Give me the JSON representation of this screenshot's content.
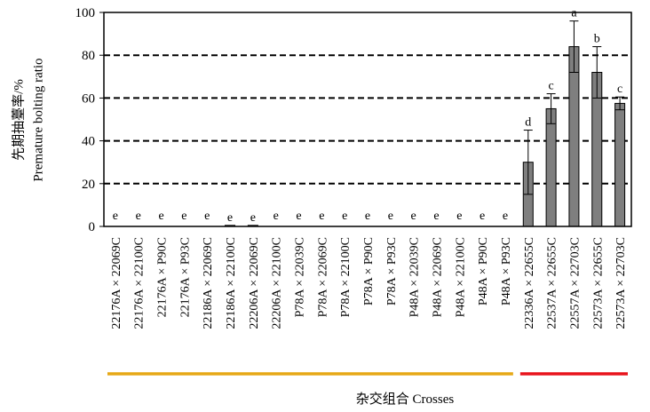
{
  "chart_data": {
    "type": "bar",
    "title": "",
    "ylabel_cn": "先期抽薹率/%",
    "ylabel_en": "Premature bolting ratio",
    "xlabel": "杂交组合 Crosses",
    "ylim": [
      0,
      100
    ],
    "yticks": [
      0,
      20,
      40,
      60,
      80,
      100
    ],
    "grid": "dashed horizontal",
    "categories": [
      "22176A × 22069C",
      "22176A × 22100C",
      "22176A × P90C",
      "22176A × P93C",
      "22186A × 22069C",
      "22186A × 22100C",
      "22206A × 22069C",
      "22206A × 22100C",
      "P78A × 22039C",
      "P78A × 22069C",
      "P78A × 22100C",
      "P78A × P90C",
      "P78A × P93C",
      "P48A × 22039C",
      "P48A × 22069C",
      "P48A × 22100C",
      "P48A × P90C",
      "P48A × P93C",
      "22336A × 22655C",
      "22537A × 22655C",
      "22557A × 22703C",
      "22573A × 22655C",
      "22573A × 22703C"
    ],
    "values": [
      0,
      0,
      0,
      0,
      0,
      0.5,
      0.5,
      0,
      0,
      0,
      0,
      0,
      0,
      0,
      0,
      0,
      0,
      0,
      30,
      55,
      84,
      72,
      57.5
    ],
    "errors": [
      0,
      0,
      0,
      0,
      0,
      0,
      0,
      0,
      0,
      0,
      0,
      0,
      0,
      0,
      0,
      0,
      0,
      0,
      15,
      7,
      12,
      12,
      3
    ],
    "letters": [
      "e",
      "e",
      "e",
      "e",
      "e",
      "e",
      "e",
      "e",
      "e",
      "e",
      "e",
      "e",
      "e",
      "e",
      "e",
      "e",
      "e",
      "e",
      "d",
      "c",
      "a",
      "b",
      "c"
    ],
    "bar_color": "#7f7f7f",
    "group_lines": [
      {
        "from": 0,
        "to": 17,
        "color": "#e6a817"
      },
      {
        "from": 18,
        "to": 22,
        "color": "#e8141c"
      }
    ]
  }
}
